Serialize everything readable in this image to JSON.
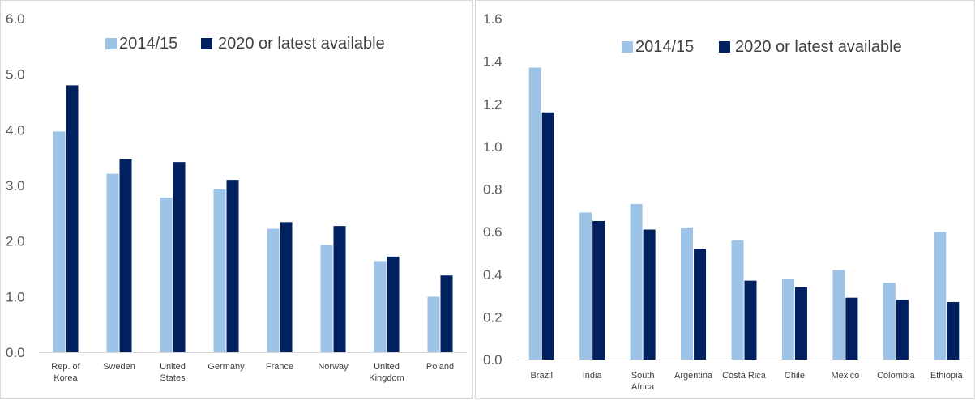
{
  "colors": {
    "series1": "#9dc3e6",
    "series2": "#002060"
  },
  "chart_data": [
    {
      "type": "bar",
      "categories": [
        [
          "Rep. of",
          "Korea"
        ],
        [
          "Sweden"
        ],
        [
          "United",
          "States"
        ],
        [
          "Germany"
        ],
        [
          "France"
        ],
        [
          "Norway"
        ],
        [
          "United",
          "Kingdom"
        ],
        [
          "Poland"
        ]
      ],
      "series": [
        {
          "name": "2014/15",
          "values": [
            3.97,
            3.21,
            2.78,
            2.93,
            2.22,
            1.93,
            1.64,
            1.0
          ]
        },
        {
          "name": "2020 or latest available",
          "values": [
            4.8,
            3.48,
            3.42,
            3.1,
            2.34,
            2.27,
            1.72,
            1.38
          ]
        }
      ],
      "ylim": [
        0,
        6
      ],
      "yticks": [
        "0.0",
        "1.0",
        "2.0",
        "3.0",
        "4.0",
        "5.0",
        "6.0"
      ],
      "legend": "top-center",
      "grid": false
    },
    {
      "type": "bar",
      "categories": [
        [
          "Brazil"
        ],
        [
          "India"
        ],
        [
          "South",
          "Africa"
        ],
        [
          "Argentina"
        ],
        [
          "Costa Rica"
        ],
        [
          "Chile"
        ],
        [
          "Mexico"
        ],
        [
          "Colombia"
        ],
        [
          "Ethiopia"
        ]
      ],
      "series": [
        {
          "name": "2014/15",
          "values": [
            1.37,
            0.69,
            0.73,
            0.62,
            0.56,
            0.38,
            0.42,
            0.36,
            0.6
          ]
        },
        {
          "name": "2020 or latest available",
          "values": [
            1.16,
            0.65,
            0.61,
            0.52,
            0.37,
            0.34,
            0.29,
            0.28,
            0.27
          ]
        }
      ],
      "ylim": [
        0,
        1.6
      ],
      "yticks": [
        "0.0",
        "0.2",
        "0.4",
        "0.6",
        "0.8",
        "1.0",
        "1.2",
        "1.4",
        "1.6"
      ],
      "legend": "top-center",
      "grid": false
    }
  ]
}
